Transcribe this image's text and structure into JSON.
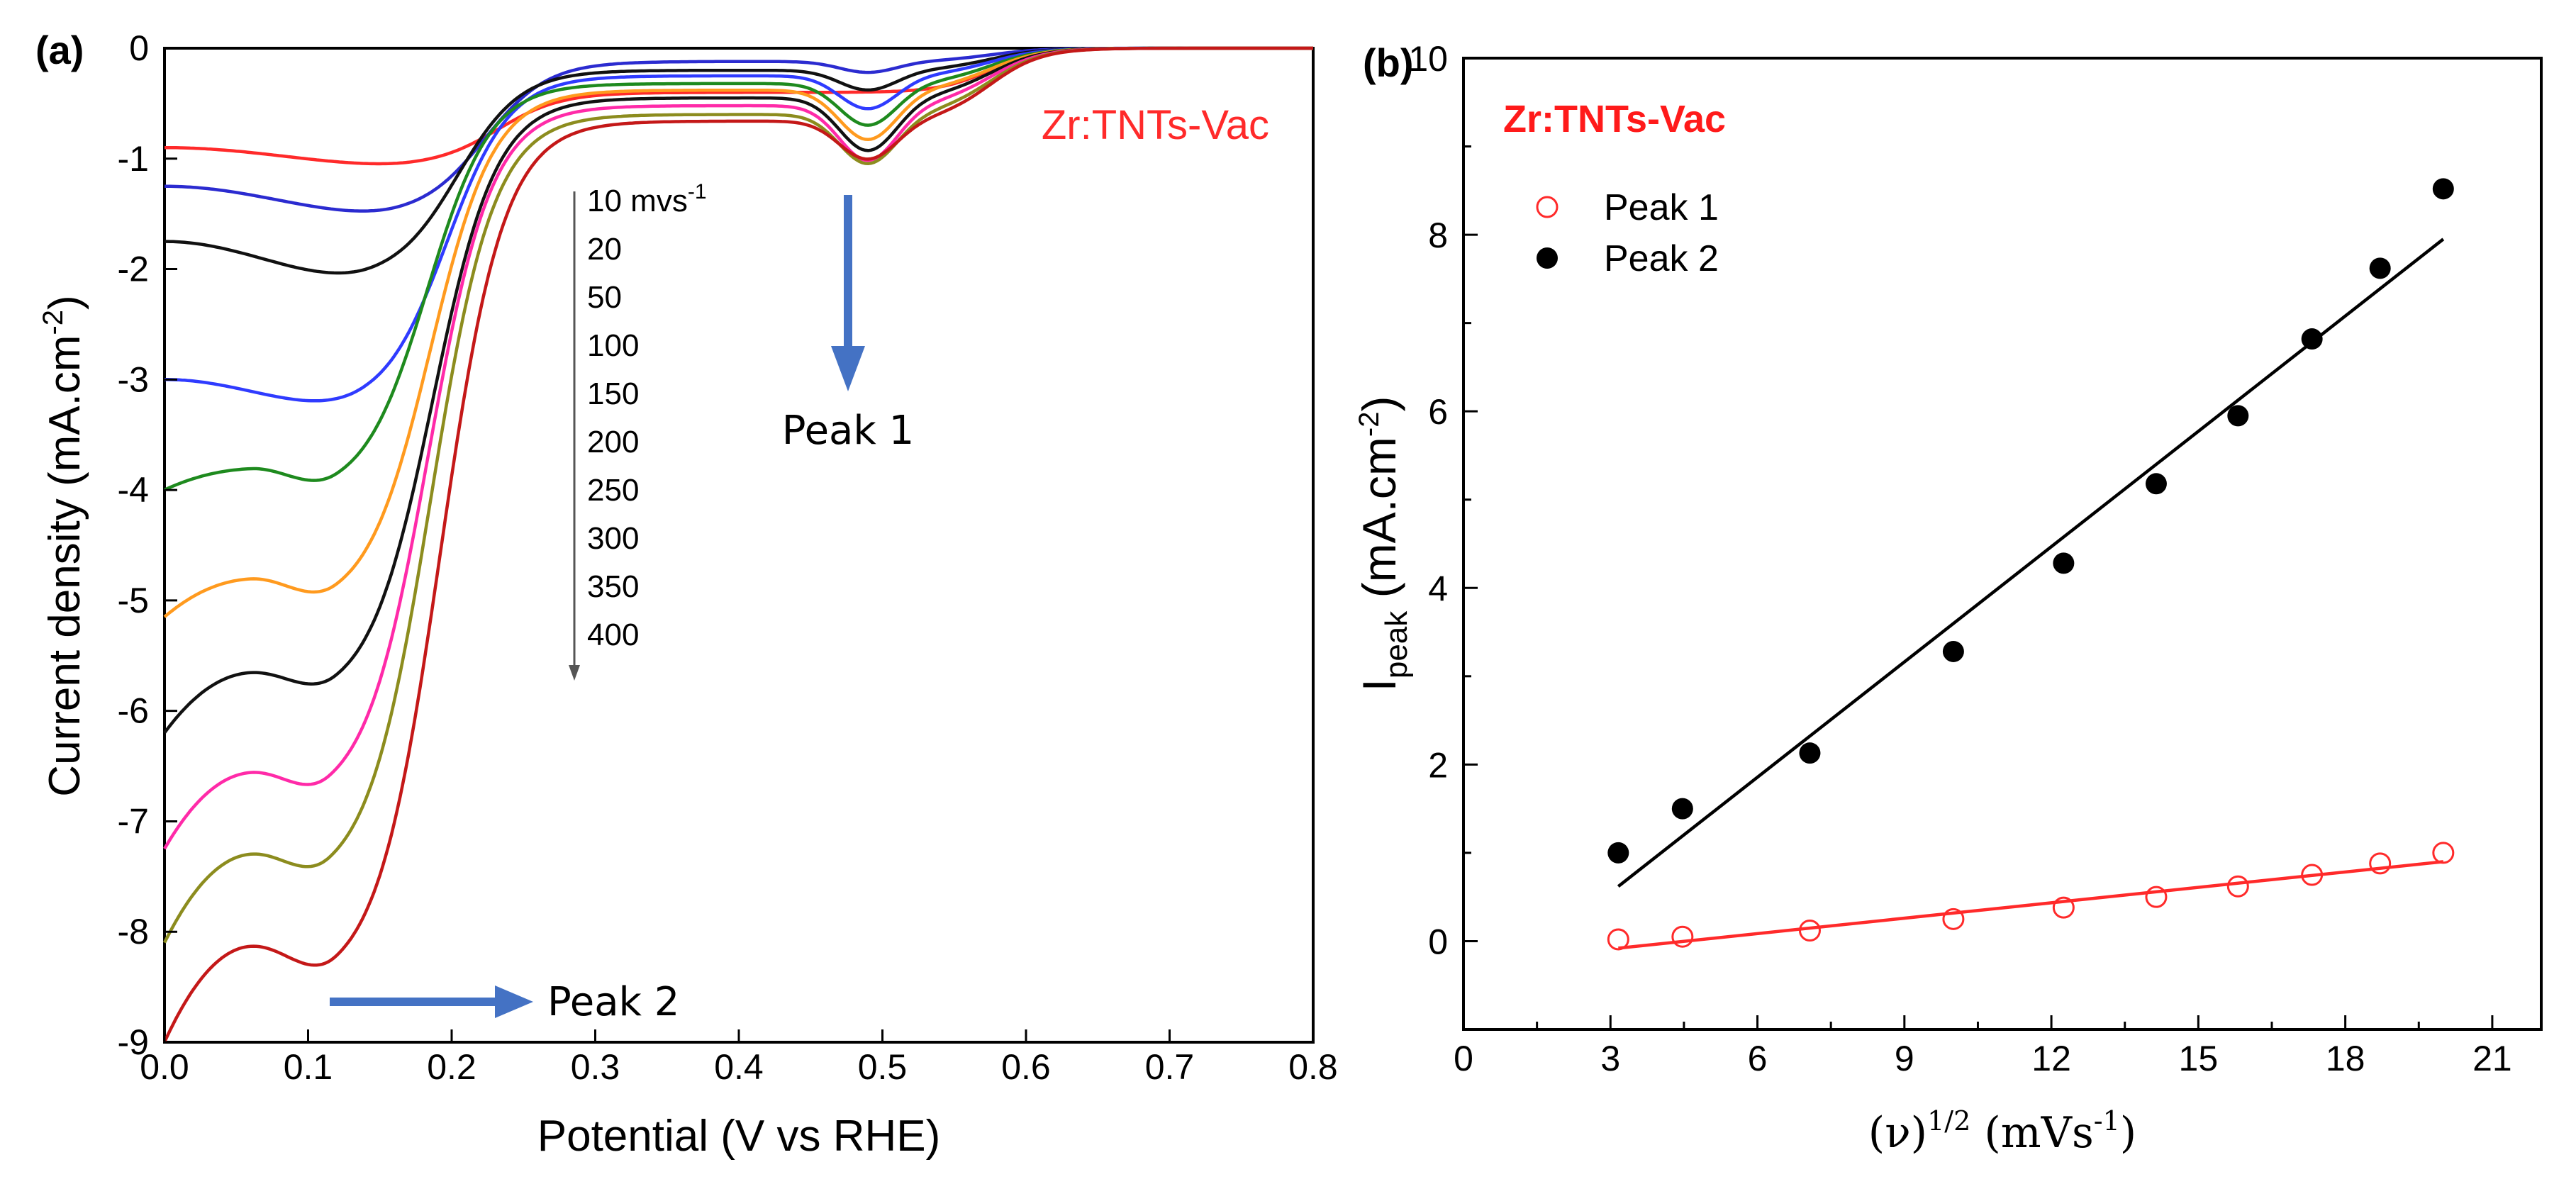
{
  "panel_a": {
    "label": "(a)",
    "material_label": "Zr:TNTs-Vac",
    "peak1_label": "Peak 1",
    "peak2_label": "Peak 2",
    "rate_label_first": "10 mvs",
    "rate_label_first_sup": "-1",
    "rate_labels": [
      "20",
      "50",
      "100",
      "150",
      "200",
      "250",
      "300",
      "350",
      "400"
    ]
  },
  "panel_b": {
    "label": "(b)",
    "material_label": "Zr:TNTs-Vac",
    "legend": {
      "peak1": "Peak 1",
      "peak2": "Peak 2"
    }
  },
  "colors": {
    "curves": [
      "#ff2a2a",
      "#2b2bd0",
      "#111111",
      "#2f3bff",
      "#1e8a1e",
      "#ff9a1e",
      "#111111",
      "#ff2aa8",
      "#8c8c1e",
      "#c41818"
    ],
    "arrow": "#4472c4",
    "peak1_series": "#ff2a2a",
    "peak2_series": "#000000"
  },
  "chart_data": [
    {
      "type": "line",
      "title": "",
      "xlabel": "Potential (V vs RHE)",
      "ylabel": "Current density (mA.cm",
      "ylabel_sup": "-2",
      "ylabel_end": ")",
      "xlim": [
        0.0,
        0.8
      ],
      "ylim": [
        -9,
        0
      ],
      "xticks": [
        0.0,
        0.1,
        0.2,
        0.3,
        0.4,
        0.5,
        0.6,
        0.7,
        0.8
      ],
      "xtick_labels": [
        "0.0",
        "0.1",
        "0.2",
        "0.3",
        "0.4",
        "0.5",
        "0.6",
        "0.7",
        "0.8"
      ],
      "yticks": [
        0,
        -1,
        -2,
        -3,
        -4,
        -5,
        -6,
        -7,
        -8,
        -9
      ],
      "ytick_labels": [
        "0",
        "-1",
        "-2",
        "-3",
        "-4",
        "-5",
        "-6",
        "-7",
        "-8",
        "-9"
      ],
      "series": [
        {
          "name": "10",
          "start": -0.9,
          "low1_x": 0.175,
          "low1": -1.07,
          "plateau": -0.4,
          "peak1_depth": 0.0
        },
        {
          "name": "20",
          "start": -1.25,
          "low1_x": 0.165,
          "low1": -1.52,
          "plateau": -0.12,
          "peak1_depth": 0.1
        },
        {
          "name": "50",
          "start": -1.75,
          "low1_x": 0.145,
          "low1": -2.1,
          "plateau": -0.2,
          "peak1_depth": 0.18
        },
        {
          "name": "100",
          "start": -3.0,
          "low1_x": 0.135,
          "low1": -3.27,
          "plateau": -0.25,
          "peak1_depth": 0.3
        },
        {
          "name": "150",
          "start": -4.0,
          "low1_x": 0.12,
          "low1": -4.05,
          "hump": -3.82,
          "plateau": -0.32,
          "peak1_depth": 0.38
        },
        {
          "name": "200",
          "start": -5.15,
          "low1_x": 0.12,
          "low1": -5.08,
          "hump": -4.82,
          "plateau": -0.38,
          "peak1_depth": 0.45
        },
        {
          "name": "250",
          "start": -6.2,
          "low1_x": 0.12,
          "low1": -5.92,
          "hump": -5.67,
          "plateau": -0.45,
          "peak1_depth": 0.48
        },
        {
          "name": "300",
          "start": -7.25,
          "low1_x": 0.115,
          "low1": -6.85,
          "hump": -6.58,
          "plateau": -0.52,
          "peak1_depth": 0.5
        },
        {
          "name": "350",
          "start": -8.1,
          "low1_x": 0.115,
          "low1": -7.6,
          "hump": -7.32,
          "plateau": -0.6,
          "peak1_depth": 0.45
        },
        {
          "name": "400",
          "start": -9.0,
          "low1_x": 0.12,
          "low1": -8.5,
          "hump": -8.15,
          "plateau": -0.66,
          "peak1_depth": 0.35
        }
      ]
    },
    {
      "type": "scatter",
      "title": "",
      "xlabel": "(ν)",
      "xlabel_sup": "1/2",
      "xlabel_end": " (mVs",
      "xlabel_end_sup": "-1",
      "xlabel_close": ")",
      "ylabel": "I",
      "ylabel_sub": "peak",
      "ylabel_end": " (mA.cm",
      "ylabel_sup": "-2",
      "ylabel_close": ")",
      "xlim": [
        0,
        22
      ],
      "ylim": [
        -1,
        10
      ],
      "xticks": [
        0,
        3,
        6,
        9,
        12,
        15,
        18,
        21
      ],
      "xtick_labels": [
        "0",
        "3",
        "6",
        "9",
        "12",
        "15",
        "18",
        "21"
      ],
      "yticks": [
        0,
        2,
        4,
        6,
        8,
        10
      ],
      "ytick_labels": [
        "0",
        "2",
        "4",
        "6",
        "8",
        "10"
      ],
      "series": [
        {
          "name": "Peak 1",
          "marker": "open-circle",
          "x": [
            3.16,
            4.47,
            7.07,
            10.0,
            12.25,
            14.14,
            15.81,
            17.32,
            18.71,
            20.0
          ],
          "y": [
            0.02,
            0.05,
            0.12,
            0.25,
            0.38,
            0.5,
            0.62,
            0.75,
            0.88,
            1.0
          ],
          "fit": [
            [
              3.16,
              -0.08
            ],
            [
              20.0,
              0.9
            ]
          ]
        },
        {
          "name": "Peak 2",
          "marker": "filled-circle",
          "x": [
            3.16,
            4.47,
            7.07,
            10.0,
            12.25,
            14.14,
            15.81,
            17.32,
            18.71,
            20.0
          ],
          "y": [
            1.0,
            1.5,
            2.13,
            3.28,
            4.28,
            5.18,
            5.95,
            6.82,
            7.62,
            8.52
          ],
          "fit": [
            [
              3.16,
              0.62
            ],
            [
              20.0,
              7.95
            ]
          ]
        }
      ]
    }
  ]
}
